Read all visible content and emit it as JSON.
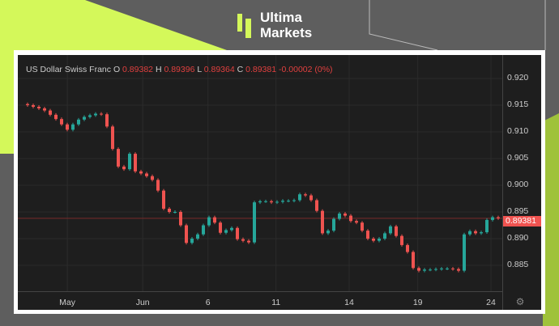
{
  "brand": {
    "line1": "Ultima",
    "line2": "Markets",
    "accent": "#d4f85a"
  },
  "legend": {
    "name": "US Dollar Swiss Franc",
    "o_label": "O",
    "o": "0.89382",
    "h_label": "H",
    "h": "0.89396",
    "l_label": "L",
    "l": "0.89364",
    "c_label": "C",
    "c": "0.89381",
    "change": "-0.00002 (0%)"
  },
  "last_price_label": "0.89381",
  "settings_icon": "gear-icon",
  "chart_data": {
    "type": "candlestick",
    "symbol": "US Dollar Swiss Franc",
    "ylim": [
      0.8815,
      0.9215
    ],
    "yticks": [
      "0.920",
      "0.915",
      "0.910",
      "0.905",
      "0.900",
      "0.895",
      "0.890",
      "0.885"
    ],
    "xticks": [
      {
        "label": "May",
        "index": 7.3
      },
      {
        "label": "Jun",
        "index": 20.6
      },
      {
        "label": "6",
        "index": 32.1
      },
      {
        "label": "11",
        "index": 44.1
      },
      {
        "label": "14",
        "index": 57
      },
      {
        "label": "19",
        "index": 69.1
      },
      {
        "label": "24",
        "index": 82
      }
    ],
    "last_price": 0.89381,
    "up_color": "#26a69a",
    "down_color": "#ef5350",
    "closes": [
      0.915,
      0.9147,
      0.9144,
      0.914,
      0.9132,
      0.9124,
      0.9114,
      0.9104,
      0.9114,
      0.9123,
      0.9128,
      0.9131,
      0.9134,
      0.9133,
      0.911,
      0.9068,
      0.9035,
      0.903,
      0.9059,
      0.9026,
      0.9022,
      0.9017,
      0.901,
      0.899,
      0.8956,
      0.895,
      0.895,
      0.8925,
      0.8892,
      0.89,
      0.8908,
      0.8925,
      0.894,
      0.893,
      0.8911,
      0.8916,
      0.892,
      0.8899,
      0.8896,
      0.8893,
      0.8968,
      0.897,
      0.897,
      0.8968,
      0.8969,
      0.8971,
      0.8971,
      0.8972,
      0.8983,
      0.8981,
      0.8972,
      0.8952,
      0.891,
      0.8915,
      0.8937,
      0.8947,
      0.8943,
      0.8933,
      0.893,
      0.8915,
      0.89,
      0.8896,
      0.89,
      0.891,
      0.8923,
      0.8905,
      0.8888,
      0.8875,
      0.8845,
      0.884,
      0.8842,
      0.8842,
      0.8843,
      0.8844,
      0.8844,
      0.8843,
      0.884,
      0.8908,
      0.8914,
      0.891,
      0.8912,
      0.8935,
      0.894,
      0.8938
    ]
  }
}
